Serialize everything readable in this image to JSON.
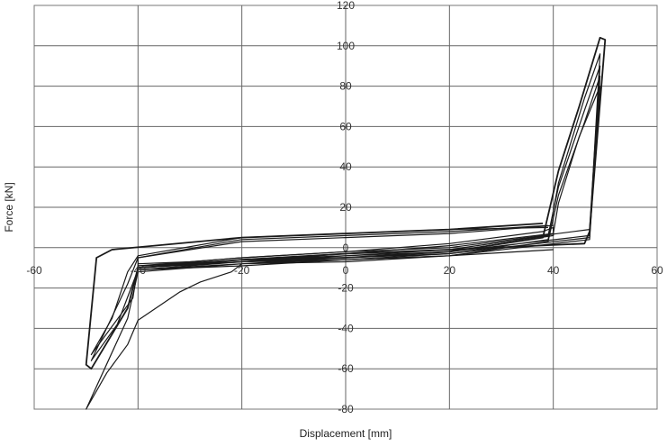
{
  "chart_data": {
    "type": "line",
    "title": "",
    "xlabel": "Displacement [mm]",
    "ylabel": "Force [kN]",
    "xlim": [
      -60,
      60
    ],
    "ylim": [
      -80,
      120
    ],
    "xticks": [
      -60,
      -40,
      -20,
      0,
      20,
      40,
      60
    ],
    "yticks": [
      -80,
      -60,
      -40,
      -20,
      0,
      20,
      40,
      60,
      80,
      100,
      120
    ],
    "grid": true,
    "legend": "none",
    "line_color": "#1a1a1a",
    "series": [
      {
        "values": [
          [
            -40,
            -10
          ],
          [
            -20,
            -6
          ],
          [
            0,
            -5
          ],
          [
            20,
            -2
          ],
          [
            38,
            5
          ],
          [
            41,
            38
          ],
          [
            45,
            70
          ],
          [
            49,
            104
          ],
          [
            50,
            103
          ],
          [
            47,
            8
          ],
          [
            46,
            2
          ],
          [
            20,
            -1
          ],
          [
            0,
            -3
          ],
          [
            -20,
            -6
          ],
          [
            -40,
            -10
          ],
          [
            -42,
            -30
          ],
          [
            -49,
            -60
          ],
          [
            -50,
            -58
          ],
          [
            -48,
            -5
          ],
          [
            -45,
            -1
          ],
          [
            -20,
            5
          ],
          [
            0,
            7
          ],
          [
            20,
            9
          ],
          [
            38,
            12
          ]
        ]
      },
      {
        "values": [
          [
            -40,
            -10
          ],
          [
            -20,
            -7
          ],
          [
            0,
            -6
          ],
          [
            20,
            -3
          ],
          [
            39,
            4
          ],
          [
            41,
            32
          ],
          [
            46,
            74
          ],
          [
            49,
            96
          ],
          [
            47,
            6
          ],
          [
            20,
            -2
          ],
          [
            0,
            -4
          ],
          [
            -20,
            -7
          ],
          [
            -40,
            -11
          ],
          [
            -44,
            -38
          ],
          [
            -49,
            -56
          ],
          [
            -47,
            -45
          ],
          [
            -42,
            -18
          ],
          [
            -40,
            -5
          ],
          [
            -20,
            4
          ],
          [
            0,
            6
          ],
          [
            20,
            8
          ],
          [
            39,
            11
          ]
        ]
      },
      {
        "values": [
          [
            -40,
            -9
          ],
          [
            -20,
            -6
          ],
          [
            0,
            -4
          ],
          [
            20,
            -1
          ],
          [
            39,
            6
          ],
          [
            41,
            30
          ],
          [
            46,
            68
          ],
          [
            49,
            90
          ],
          [
            47,
            9
          ],
          [
            20,
            0
          ],
          [
            0,
            -2
          ],
          [
            -20,
            -5
          ],
          [
            -40,
            -9
          ],
          [
            -41,
            -25
          ],
          [
            -49,
            -53
          ],
          [
            -45,
            -35
          ],
          [
            -42,
            -12
          ],
          [
            -40,
            -4
          ],
          [
            -20,
            5
          ],
          [
            0,
            7
          ],
          [
            20,
            9
          ],
          [
            39,
            10
          ]
        ]
      },
      {
        "values": [
          [
            -40,
            -11
          ],
          [
            -20,
            -8
          ],
          [
            0,
            -7
          ],
          [
            20,
            -4
          ],
          [
            39,
            3
          ],
          [
            41,
            26
          ],
          [
            46,
            62
          ],
          [
            49,
            85
          ],
          [
            47,
            5
          ],
          [
            20,
            -3
          ],
          [
            0,
            -5
          ],
          [
            -20,
            -8
          ],
          [
            -40,
            -12
          ],
          [
            -42,
            -35
          ],
          [
            -50,
            -80
          ],
          [
            -46,
            -62
          ],
          [
            -42,
            -48
          ],
          [
            -40,
            -36
          ],
          [
            -32,
            -22
          ],
          [
            -28,
            -17
          ],
          [
            -22,
            -12
          ],
          [
            -20,
            -8
          ],
          [
            0,
            -6
          ],
          [
            20,
            -4
          ],
          [
            40,
            -1
          ]
        ]
      },
      {
        "values": [
          [
            -40,
            -8
          ],
          [
            -30,
            -7
          ],
          [
            -20,
            -5
          ],
          [
            0,
            -2
          ],
          [
            20,
            2
          ],
          [
            38,
            8
          ],
          [
            40,
            10
          ],
          [
            40,
            6
          ],
          [
            20,
            -2
          ],
          [
            0,
            -5
          ],
          [
            -20,
            -7
          ],
          [
            -40,
            -10
          ],
          [
            -40,
            -5
          ],
          [
            -20,
            3
          ],
          [
            0,
            5
          ],
          [
            20,
            7
          ],
          [
            40,
            11
          ]
        ]
      },
      {
        "values": [
          [
            -40,
            -9
          ],
          [
            -20,
            -7
          ],
          [
            0,
            -3
          ],
          [
            20,
            1
          ],
          [
            40,
            7
          ],
          [
            41,
            22
          ],
          [
            45,
            55
          ],
          [
            49,
            80
          ],
          [
            47,
            4
          ],
          [
            20,
            -4
          ],
          [
            0,
            -6
          ],
          [
            -20,
            -9
          ],
          [
            -40,
            -11
          ]
        ]
      }
    ]
  }
}
